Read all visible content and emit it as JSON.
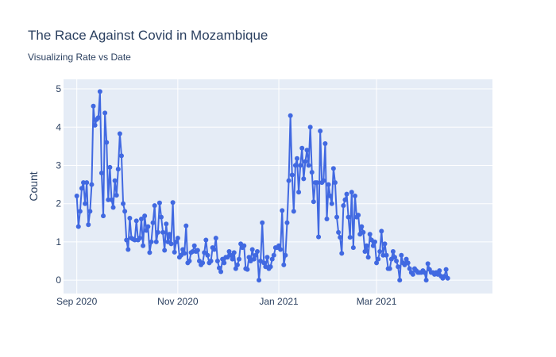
{
  "chart_data": {
    "type": "line",
    "title": "The Race Against Covid in Mozambique",
    "subtitle": "Visualizing Rate vs Date",
    "xlabel": "",
    "ylabel": "Count",
    "ylim": [
      -0.35,
      5.25
    ],
    "yticks": [
      0,
      1,
      2,
      3,
      4,
      5
    ],
    "xlim": [
      "2020-08-24",
      "2021-05-10"
    ],
    "xticks": [
      {
        "date": "2020-09-01",
        "label": "Sep 2020"
      },
      {
        "date": "2020-11-01",
        "label": "Nov 2020"
      },
      {
        "date": "2021-01-01",
        "label": "Jan 2021"
      },
      {
        "date": "2021-03-01",
        "label": "Mar 2021"
      }
    ],
    "grid": true,
    "legend": "none",
    "colors": {
      "series": "#4169e1",
      "plot_bg": "#e5ecf6",
      "grid": "#ffffff"
    },
    "series": [
      {
        "start": "2020-09-01",
        "values": [
          2.2,
          1.4,
          1.8,
          2.4,
          2.55,
          2.0,
          2.55,
          1.45,
          1.8,
          2.5,
          4.55,
          4.05,
          4.2,
          4.25,
          4.93,
          2.8,
          1.68,
          4.37,
          3.6,
          2.1,
          2.95,
          2.1,
          1.9,
          2.6,
          2.22,
          2.9,
          3.83,
          3.25,
          2.0,
          1.8,
          1.05,
          0.8,
          1.62,
          1.1,
          1.07,
          1.05,
          1.55,
          1.05,
          1.1,
          1.6,
          0.9,
          1.68,
          1.3,
          1.4,
          0.72,
          1.0,
          1.5,
          1.95,
          1.0,
          1.25,
          2.02,
          1.65,
          1.25,
          0.78,
          1.47,
          1.0,
          1.2,
          0.95,
          2.03,
          0.73,
          1.0,
          1.1,
          0.6,
          0.65,
          0.8,
          0.7,
          1.42,
          0.45,
          0.5,
          0.72,
          0.75,
          0.9,
          0.75,
          0.78,
          0.5,
          0.4,
          0.45,
          0.72,
          1.05,
          0.65,
          0.45,
          0.5,
          0.85,
          0.8,
          1.1,
          0.5,
          0.32,
          0.22,
          0.55,
          0.45,
          0.6,
          0.6,
          0.75,
          0.65,
          0.55,
          0.72,
          0.3,
          0.4,
          0.55,
          0.95,
          0.85,
          0.9,
          0.3,
          0.28,
          0.6,
          0.5,
          0.8,
          0.55,
          0.65,
          0.75,
          0.0,
          0.5,
          1.5,
          0.45,
          0.35,
          0.6,
          0.3,
          0.35,
          0.55,
          0.65,
          0.85,
          0.85,
          0.9,
          0.8,
          1.82,
          0.4,
          0.65,
          1.5,
          2.6,
          4.3,
          2.75,
          1.8,
          3.0,
          3.18,
          2.3,
          3.0,
          3.45,
          2.65,
          3.1,
          3.4,
          3.0,
          4.0,
          2.82,
          2.05,
          2.55,
          2.55,
          1.13,
          3.9,
          2.55,
          2.6,
          3.57,
          1.6,
          2.5,
          2.2,
          2.0,
          2.92,
          2.55,
          1.65,
          1.25,
          1.12,
          0.7,
          1.95,
          2.1,
          2.25,
          1.65,
          1.12,
          2.3,
          0.85,
          2.2,
          1.65,
          1.7,
          1.2,
          1.4,
          1.25,
          0.75,
          0.9,
          0.6,
          1.2,
          1.05,
          0.9,
          1.0,
          0.45,
          0.55,
          0.75,
          1.28,
          0.65,
          0.95,
          0.65,
          0.3,
          0.3,
          0.55,
          0.75,
          0.6,
          0.5,
          0.35,
          0.0,
          0.65,
          0.45,
          0.4,
          0.55,
          0.45,
          0.3,
          0.2,
          0.15,
          0.3,
          0.25,
          0.2,
          0.2,
          0.2,
          0.25,
          0.2,
          0.0,
          0.43,
          0.28,
          0.2,
          0.2,
          0.15,
          0.2,
          0.15,
          0.25,
          0.1,
          0.05,
          0.1,
          0.28,
          0.05
        ]
      }
    ]
  }
}
